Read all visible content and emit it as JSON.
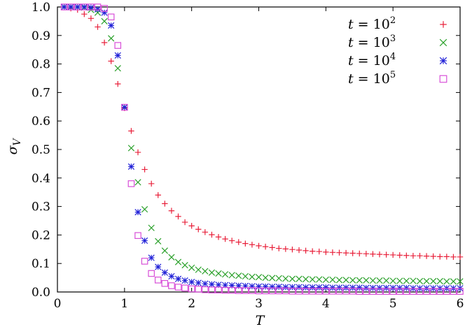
{
  "chart_data": {
    "type": "scatter",
    "xlabel": "T",
    "ylabel": "σ_V",
    "xlim": [
      0,
      6
    ],
    "ylim": [
      0,
      1
    ],
    "x_ticks": [
      "0",
      "1",
      "2",
      "3",
      "4",
      "5",
      "6"
    ],
    "y_ticks": [
      "0.0",
      "0.1",
      "0.2",
      "0.3",
      "0.4",
      "0.5",
      "0.6",
      "0.7",
      "0.8",
      "0.9",
      "1.0"
    ],
    "grid": false,
    "legend_position": "top-right",
    "series": [
      {
        "name": "t = 10^2",
        "legend_base": "t = 10",
        "legend_exp": "2",
        "marker": "plus",
        "color": "#e8203a",
        "x": [
          0.1,
          0.2,
          0.3,
          0.4,
          0.5,
          0.6,
          0.7,
          0.8,
          0.9,
          1.0,
          1.1,
          1.2,
          1.3,
          1.4,
          1.5,
          1.6,
          1.7,
          1.8,
          1.9,
          2.0,
          2.1,
          2.2,
          2.3,
          2.4,
          2.5,
          2.6,
          2.7,
          2.8,
          2.9,
          3.0,
          3.1,
          3.2,
          3.3,
          3.4,
          3.5,
          3.6,
          3.7,
          3.8,
          3.9,
          4.0,
          4.1,
          4.2,
          4.3,
          4.4,
          4.5,
          4.6,
          4.7,
          4.8,
          4.9,
          5.0,
          5.1,
          5.2,
          5.3,
          5.4,
          5.5,
          5.6,
          5.7,
          5.8,
          5.9,
          6.0
        ],
        "y": [
          1.0,
          0.995,
          0.99,
          0.975,
          0.96,
          0.93,
          0.875,
          0.81,
          0.73,
          0.645,
          0.565,
          0.49,
          0.43,
          0.38,
          0.34,
          0.31,
          0.285,
          0.265,
          0.245,
          0.232,
          0.22,
          0.21,
          0.201,
          0.193,
          0.186,
          0.18,
          0.175,
          0.17,
          0.166,
          0.162,
          0.159,
          0.156,
          0.153,
          0.151,
          0.149,
          0.147,
          0.145,
          0.143,
          0.142,
          0.14,
          0.139,
          0.138,
          0.137,
          0.136,
          0.135,
          0.134,
          0.133,
          0.132,
          0.131,
          0.13,
          0.129,
          0.128,
          0.127,
          0.127,
          0.126,
          0.125,
          0.124,
          0.124,
          0.123,
          0.123
        ]
      },
      {
        "name": "t = 10^3",
        "legend_base": "t = 10",
        "legend_exp": "3",
        "marker": "x",
        "color": "#2aa02a",
        "x": [
          0.1,
          0.2,
          0.3,
          0.4,
          0.5,
          0.6,
          0.7,
          0.8,
          0.9,
          1.0,
          1.1,
          1.2,
          1.3,
          1.4,
          1.5,
          1.6,
          1.7,
          1.8,
          1.9,
          2.0,
          2.1,
          2.2,
          2.3,
          2.4,
          2.5,
          2.6,
          2.7,
          2.8,
          2.9,
          3.0,
          3.1,
          3.2,
          3.3,
          3.4,
          3.5,
          3.6,
          3.7,
          3.8,
          3.9,
          4.0,
          4.1,
          4.2,
          4.3,
          4.4,
          4.5,
          4.6,
          4.7,
          4.8,
          4.9,
          5.0,
          5.1,
          5.2,
          5.3,
          5.4,
          5.5,
          5.6,
          5.7,
          5.8,
          5.9,
          6.0
        ],
        "y": [
          1.0,
          1.0,
          1.0,
          0.998,
          0.99,
          0.98,
          0.95,
          0.89,
          0.785,
          0.648,
          0.505,
          0.385,
          0.29,
          0.225,
          0.178,
          0.145,
          0.122,
          0.105,
          0.094,
          0.085,
          0.078,
          0.073,
          0.068,
          0.065,
          0.062,
          0.059,
          0.057,
          0.055,
          0.053,
          0.052,
          0.05,
          0.049,
          0.048,
          0.047,
          0.046,
          0.046,
          0.045,
          0.044,
          0.044,
          0.043,
          0.043,
          0.042,
          0.042,
          0.041,
          0.041,
          0.041,
          0.04,
          0.04,
          0.04,
          0.039,
          0.039,
          0.039,
          0.039,
          0.038,
          0.038,
          0.038,
          0.038,
          0.037,
          0.037,
          0.037
        ]
      },
      {
        "name": "t = 10^4",
        "legend_base": "t = 10",
        "legend_exp": "4",
        "marker": "star",
        "color": "#2323d8",
        "x": [
          0.1,
          0.2,
          0.3,
          0.4,
          0.5,
          0.6,
          0.7,
          0.8,
          0.9,
          1.0,
          1.1,
          1.2,
          1.3,
          1.4,
          1.5,
          1.6,
          1.7,
          1.8,
          1.9,
          2.0,
          2.1,
          2.2,
          2.3,
          2.4,
          2.5,
          2.6,
          2.7,
          2.8,
          2.9,
          3.0,
          3.1,
          3.2,
          3.3,
          3.4,
          3.5,
          3.6,
          3.7,
          3.8,
          3.9,
          4.0,
          4.1,
          4.2,
          4.3,
          4.4,
          4.5,
          4.6,
          4.7,
          4.8,
          4.9,
          5.0,
          5.1,
          5.2,
          5.3,
          5.4,
          5.5,
          5.6,
          5.7,
          5.8,
          5.9,
          6.0
        ],
        "y": [
          1.0,
          1.0,
          1.0,
          1.0,
          0.998,
          0.992,
          0.98,
          0.935,
          0.83,
          0.648,
          0.44,
          0.28,
          0.18,
          0.12,
          0.088,
          0.068,
          0.055,
          0.046,
          0.04,
          0.035,
          0.032,
          0.029,
          0.027,
          0.025,
          0.024,
          0.023,
          0.022,
          0.021,
          0.02,
          0.019,
          0.019,
          0.018,
          0.018,
          0.017,
          0.017,
          0.017,
          0.016,
          0.016,
          0.016,
          0.016,
          0.015,
          0.015,
          0.015,
          0.015,
          0.015,
          0.014,
          0.014,
          0.014,
          0.014,
          0.014,
          0.014,
          0.014,
          0.013,
          0.013,
          0.013,
          0.013,
          0.013,
          0.013,
          0.013,
          0.013
        ]
      },
      {
        "name": "t = 10^5",
        "legend_base": "t = 10",
        "legend_exp": "5",
        "marker": "square",
        "color": "#d84fd8",
        "x": [
          0.1,
          0.2,
          0.3,
          0.4,
          0.5,
          0.6,
          0.7,
          0.8,
          0.9,
          1.0,
          1.1,
          1.2,
          1.3,
          1.4,
          1.5,
          1.6,
          1.7,
          1.8,
          1.9,
          2.0,
          2.1,
          2.2,
          2.3,
          2.4,
          2.5,
          2.6,
          2.7,
          2.8,
          2.9,
          3.0,
          3.1,
          3.2,
          3.3,
          3.4,
          3.5,
          3.6,
          3.7,
          3.8,
          3.9,
          4.0,
          4.1,
          4.2,
          4.3,
          4.4,
          4.5,
          4.6,
          4.7,
          4.8,
          4.9,
          5.0,
          5.1,
          5.2,
          5.3,
          5.4,
          5.5,
          5.6,
          5.7,
          5.8,
          5.9,
          6.0
        ],
        "y": [
          1.0,
          1.0,
          1.0,
          1.0,
          1.0,
          1.0,
          0.995,
          0.965,
          0.865,
          0.648,
          0.38,
          0.198,
          0.108,
          0.065,
          0.042,
          0.03,
          0.022,
          0.017,
          0.014,
          0.011,
          0.01,
          0.008,
          0.007,
          0.007,
          0.006,
          0.006,
          0.005,
          0.005,
          0.005,
          0.004,
          0.004,
          0.004,
          0.004,
          0.004,
          0.003,
          0.003,
          0.003,
          0.003,
          0.003,
          0.003,
          0.003,
          0.003,
          0.003,
          0.003,
          0.002,
          0.002,
          0.002,
          0.002,
          0.002,
          0.002,
          0.002,
          0.002,
          0.002,
          0.002,
          0.002,
          0.002,
          0.002,
          0.002,
          0.002,
          0.002
        ]
      }
    ]
  }
}
